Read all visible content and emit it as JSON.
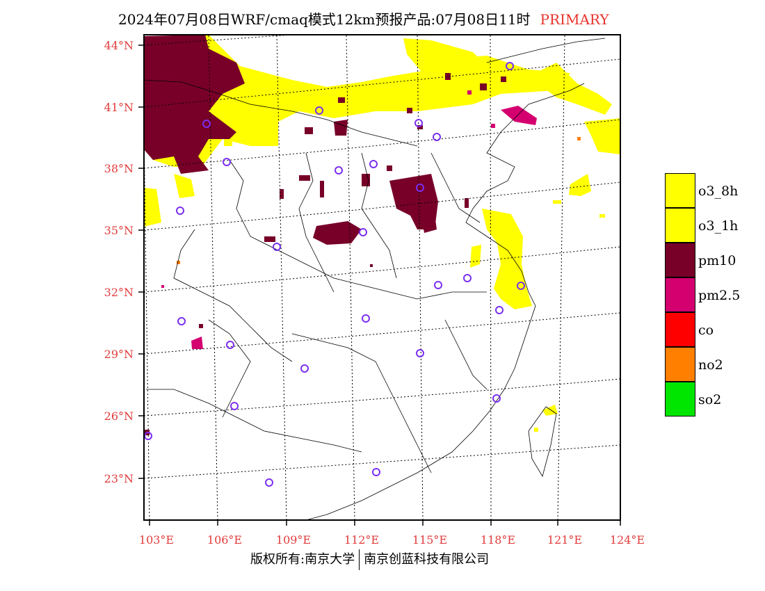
{
  "title": {
    "text": "2024年07月08日WRF/cmaq模式12km预报产品:07月08日11时",
    "tag": "PRIMARY"
  },
  "lat_labels": [
    "44°N",
    "41°N",
    "38°N",
    "35°N",
    "32°N",
    "29°N",
    "26°N",
    "23°N"
  ],
  "lon_labels": [
    "103°E",
    "106°E",
    "109°E",
    "112°E",
    "115°E",
    "118°E",
    "121°E",
    "124°E"
  ],
  "legend": [
    {
      "label": "o3_8h",
      "color": "#ffff00"
    },
    {
      "label": "o3_1h",
      "color": "#ffff00"
    },
    {
      "label": "pm10",
      "color": "#780028"
    },
    {
      "label": "pm2.5",
      "color": "#d4006f"
    },
    {
      "label": "co",
      "color": "#ff0000"
    },
    {
      "label": "no2",
      "color": "#ff7f00"
    },
    {
      "label": "so2",
      "color": "#00e600"
    }
  ],
  "footer": {
    "left": "版权所有:南京大学",
    "right": "南京创蓝科技有限公司"
  },
  "colors": {
    "label_red": "#e23b3b",
    "o3": "#ffff00",
    "pm10": "#780028",
    "pm25": "#d4006f",
    "no2": "#ff7f00",
    "station": "#7a2ff0"
  }
}
